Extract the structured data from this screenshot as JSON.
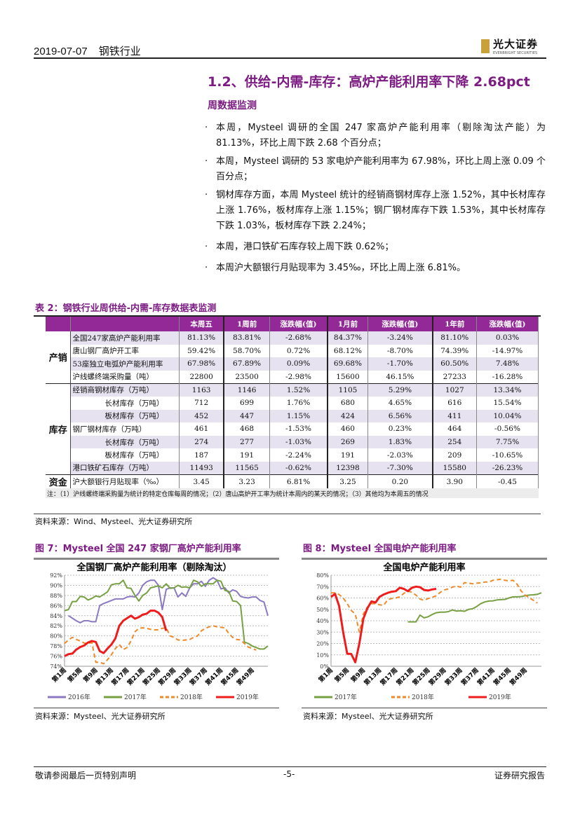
{
  "header": {
    "date": "2019-07-07",
    "industry": "钢铁行业",
    "logo_cn": "光大证券",
    "logo_en": "EVERBRIGHT SECURITIES"
  },
  "heading": "1.2、供给-内需-库存：高炉产能利用率下降 2.68pct",
  "subheading": "周数据监测",
  "bullet_glyph": "·",
  "bullets": [
    "本周，Mysteel 调研的全国 247 家高炉产能利用率（剔除淘汰产能）为 81.13%，环比上周下跌 2.68 个百分点；",
    "本周，Mysteel 调研的 53 家电炉产能利用率为 67.98%，环比上周上涨 0.09 个百分点；",
    "钢材库存方面，本周 Mysteel 统计的经销商钢材库存上涨 1.52%，其中长材库存上涨 1.76%，板材库存上涨 1.15%；钢厂钢材库存下跌 1.53%，其中长材库存下跌 1.03%，板材库存下跌 2.24%；",
    "本周，港口铁矿石库存较上周下跌 0.62%；",
    "本周沪大额银行月贴现率为 3.45‰，环比上周上涨 6.81%。"
  ],
  "table": {
    "caption": "表 2：钢铁行业周供给-内需-库存数据表监测",
    "headers": [
      "本周五",
      "1周前",
      "涨跌幅(值)",
      "1月前",
      "涨跌幅(值)",
      "1年前",
      "涨跌幅(值)"
    ],
    "groups": [
      "产销",
      "库存",
      "资金"
    ],
    "rows": [
      {
        "label": "全国247家高炉产能利用率",
        "values": [
          "81.13%",
          "83.81%",
          "-2.68%",
          "84.37%",
          "-3.24%",
          "81.10%",
          "0.03%"
        ]
      },
      {
        "label": "唐山钢厂高炉开工率",
        "values": [
          "59.42%",
          "58.70%",
          "0.72%",
          "68.12%",
          "-8.70%",
          "74.39%",
          "-14.97%"
        ]
      },
      {
        "label": "53座独立电弧炉产能利用率",
        "values": [
          "67.98%",
          "67.89%",
          "0.09%",
          "69.68%",
          "-1.70%",
          "60.50%",
          "7.48%"
        ]
      },
      {
        "label": "沪线螺终端采购量（吨）",
        "values": [
          "22800",
          "23500",
          "-2.98%",
          "15600",
          "46.15%",
          "27233",
          "-16.28%"
        ]
      },
      {
        "label": "经销商钢材库存（万吨）",
        "values": [
          "1163",
          "1146",
          "1.52%",
          "1105",
          "5.29%",
          "1027",
          "13.34%"
        ]
      },
      {
        "label": "长材库存（万吨）",
        "values": [
          "712",
          "699",
          "1.76%",
          "680",
          "4.65%",
          "616",
          "15.54%"
        ]
      },
      {
        "label": "板材库存（万吨）",
        "values": [
          "452",
          "447",
          "1.15%",
          "424",
          "6.56%",
          "411",
          "10.04%"
        ]
      },
      {
        "label": "钢厂钢材库存（万吨）",
        "values": [
          "461",
          "468",
          "-1.53%",
          "460",
          "0.23%",
          "464",
          "-0.56%"
        ]
      },
      {
        "label": "长材库存（万吨）",
        "values": [
          "274",
          "277",
          "-1.03%",
          "269",
          "1.83%",
          "254",
          "7.75%"
        ]
      },
      {
        "label": "板材库存（万吨）",
        "values": [
          "187",
          "191",
          "-2.24%",
          "191",
          "-2.03%",
          "209",
          "-10.65%"
        ]
      },
      {
        "label": "港口铁矿石库存（万吨）",
        "values": [
          "11493",
          "11565",
          "-0.62%",
          "12398",
          "-7.30%",
          "15580",
          "-26.23%"
        ]
      },
      {
        "label": "沪大额银行月贴现率（‰）",
        "values": [
          "3.45",
          "3.23",
          "6.81%",
          "3.25",
          "0.20",
          "3.90",
          "-0.45"
        ]
      }
    ],
    "note": "注：（1）沪线螺终端采购量为统计的特定仓库每周的情况；（2）唐山高炉开工率为统计本周内的某天的情况；（3）其他均为本周五的情况",
    "source": "资料来源：Wind、Mysteel、光大证券研究所"
  },
  "figures": [
    {
      "caption": "图 7：Mysteel 全国 247 家钢厂高炉产能利用率",
      "source": "资料来源：Mysteel、光大证券研究所"
    },
    {
      "caption": "图 8：Mysteel 全国电炉产能利用率",
      "source": "资料来源：Mysteel、光大证券研究所"
    }
  ],
  "chart_data": [
    {
      "type": "line",
      "title": "全国钢厂高炉产能利用率（剔除淘汰）",
      "ylim": [
        74,
        92
      ],
      "ystep": 2,
      "yunit": "%",
      "xlim": [
        1,
        53
      ],
      "xticks": [
        "第1周",
        "第5周",
        "第9周",
        "第13周",
        "第17周",
        "第21周",
        "第25周",
        "第29周",
        "第33周",
        "第37周",
        "第41周",
        "第45周",
        "第49周"
      ],
      "series": [
        {
          "name": "2016年",
          "color": "#8b79c2",
          "dash": false,
          "start": 2,
          "values": [
            84,
            83.5,
            83,
            82.6,
            83,
            83,
            82.8,
            82.8,
            86,
            86.4,
            86.7,
            87,
            87.3,
            87.3,
            87.3,
            87.7,
            87.8,
            87.7,
            88.5,
            90,
            90.7,
            91,
            91,
            90,
            85.2,
            89.2,
            89.5,
            89.5,
            87.7,
            88.5,
            87.8,
            89.5,
            90.3,
            90.3,
            90.8,
            89.8,
            91,
            91.5,
            91,
            89.3,
            89.5,
            88.5,
            89.1,
            88.8,
            87.8,
            87.6,
            87.5,
            87.7,
            87.7,
            87,
            86.7,
            84
          ]
        },
        {
          "name": "2017年",
          "color": "#77a043",
          "dash": false,
          "start": 1,
          "values": [
            85,
            85.2,
            86.8,
            86.8,
            87.8,
            87.7,
            87.1,
            87.4,
            87.9,
            87.7,
            88.2,
            88.7,
            90.1,
            90.3,
            90.3,
            91,
            89.5,
            89.4,
            88,
            86.9,
            88,
            88.5,
            89.5,
            89.7,
            89.9,
            89.5,
            90.3,
            89.4,
            89.5,
            90,
            89.6,
            89.7,
            89.5,
            91,
            90.7,
            89.8,
            90.3,
            90.3,
            90.3,
            91,
            90.8,
            89,
            88.8,
            86.9,
            86.8,
            86,
            78.8,
            78.5,
            78,
            77.7,
            77.4,
            77.4,
            78
          ]
        },
        {
          "name": "2018年",
          "color": "#ee8a2a",
          "dash": true,
          "start": 1,
          "values": [
            78.5,
            79.2,
            79.7,
            79.3,
            79,
            78.6,
            78.5,
            78.7,
            74.8,
            74.8,
            74.5,
            75.3,
            76.3,
            77.5,
            78.3,
            77.3,
            77.7,
            79,
            80.8,
            81.5,
            81.6,
            81.5,
            81.3,
            81.2,
            81.2,
            81.5,
            81.6,
            80,
            79.7,
            79.2,
            79.1,
            79.2,
            79.3,
            79.7,
            80,
            81,
            81.5,
            81.8,
            82,
            81.8,
            81.7,
            81.6,
            80.5,
            79.7,
            79.3,
            79.2,
            78.5,
            77.8,
            77.5,
            77.2
          ]
        },
        {
          "name": "2019年",
          "color": "#ee1c1c",
          "dash": false,
          "start": 1,
          "values": [
            76,
            76.4,
            76.5,
            77.3,
            77.8,
            78.1,
            78.7,
            79,
            78.8,
            77,
            76.6,
            77.5,
            78.3,
            79.5,
            82,
            83,
            83.5,
            84,
            83.4,
            83.7,
            84.2,
            84.4,
            85,
            85,
            84.6,
            83.7,
            81
          ]
        }
      ]
    },
    {
      "type": "line",
      "title": "全国电炉产能利用率",
      "ylim": [
        0,
        80
      ],
      "ystep": 10,
      "yunit": "%",
      "xlim": [
        1,
        53
      ],
      "xticks": [
        "第1周",
        "第5周",
        "第9周",
        "第13周",
        "第17周",
        "第21周",
        "第25周",
        "第29周",
        "第33周",
        "第37周",
        "第41周",
        "第45周",
        "第49周"
      ],
      "series": [
        {
          "name": "2017年",
          "color": "#77a043",
          "dash": false,
          "start": 20,
          "values": [
            39,
            39,
            39,
            45,
            42.5,
            43.5,
            45.5,
            47,
            47.5,
            47.5,
            48,
            49.5,
            48.5,
            48.8,
            48.3,
            50,
            50.5,
            52.5,
            55,
            56.5,
            57.3,
            57.5,
            58.3,
            58.5,
            58.8,
            60,
            61,
            61,
            61.2,
            62,
            62.5,
            62.8,
            63.2,
            64.5
          ]
        },
        {
          "name": "2018年",
          "color": "#ee8a2a",
          "dash": true,
          "start": 1,
          "values": [
            64.5,
            64.5,
            63,
            60,
            55,
            49,
            46,
            30,
            46,
            52,
            55,
            55,
            54,
            53.5,
            58.5,
            59.5,
            60,
            61,
            64,
            66,
            65,
            62.5,
            59,
            58,
            59.5,
            60.5,
            62,
            65,
            67,
            68,
            69.5,
            70.5,
            69.5,
            73.5,
            73,
            72.5,
            73,
            73.2,
            74,
            74,
            75.5,
            76,
            76.5,
            75.5,
            75,
            75.5,
            72,
            66,
            62.5,
            60,
            58,
            55.5
          ]
        },
        {
          "name": "2019年",
          "color": "#ee1c1c",
          "dash": false,
          "start": 1,
          "values": [
            61,
            63.5,
            53,
            30,
            11,
            10.8,
            3.5,
            20,
            42,
            51,
            57,
            56,
            61,
            63,
            64.5,
            65.5,
            66,
            69,
            68,
            66,
            69,
            70,
            69.5,
            67,
            66.5,
            67.5,
            68
          ]
        }
      ]
    }
  ],
  "footer": {
    "left": "敬请参阅最后一页特别声明",
    "center": "-5-",
    "right": "证券研究报告"
  }
}
